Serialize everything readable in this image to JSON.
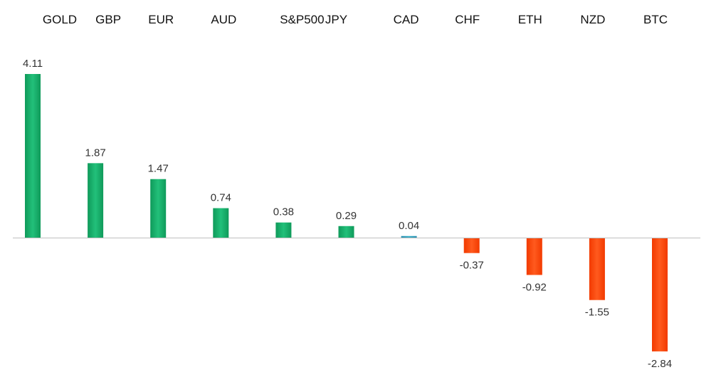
{
  "chart_data": {
    "type": "bar",
    "title": "",
    "xlabel": "",
    "ylabel": "",
    "categories": [
      "GOLD",
      "GBP",
      "EUR",
      "AUD",
      "S&P500",
      "JPY",
      "CAD",
      "CHF",
      "ETH",
      "NZD",
      "BTC"
    ],
    "values": [
      4.11,
      1.87,
      1.47,
      0.74,
      0.38,
      0.29,
      0.04,
      -0.37,
      -0.92,
      -1.55,
      -2.84
    ],
    "value_labels": [
      "4.11",
      "1.87",
      "1.47",
      "0.74",
      "0.38",
      "0.29",
      "0.04",
      "-0.37",
      "-0.92",
      "-1.55",
      "-2.84"
    ],
    "ylim": [
      -2.84,
      4.11
    ],
    "grid": false,
    "legend": "none",
    "category_axis_position": "top",
    "colors": {
      "positive": "#17b26a",
      "positive_dark": "#0f9a5a",
      "negative": "#ff4a12",
      "negative_dark": "#f23a00",
      "axis": "#bfbfbf"
    }
  }
}
